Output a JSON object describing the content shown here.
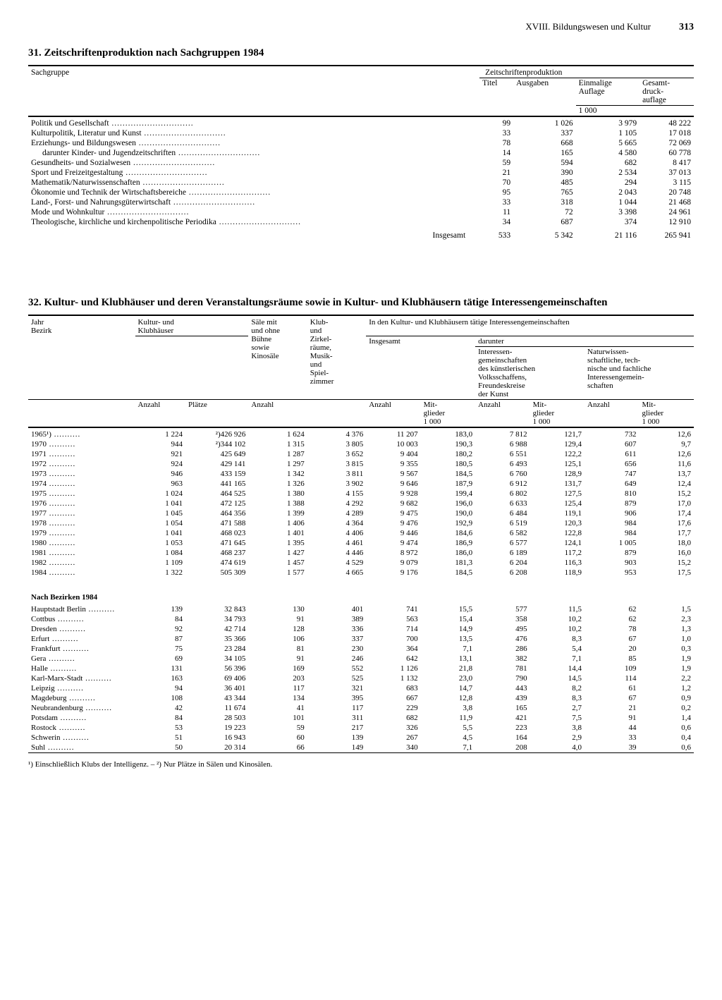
{
  "page": {
    "chapter": "XVIII. Bildungswesen und Kultur",
    "number": "313"
  },
  "table31": {
    "title": "31. Zeitschriftenproduktion nach Sachgruppen 1984",
    "col_sachgruppe": "Sachgruppe",
    "col_group": "Zeitschriftenproduktion",
    "col_titel": "Titel",
    "col_ausgaben": "Ausgaben",
    "col_einmalige": "Einmalige\nAuflage",
    "col_gesamt": "Gesamt-\ndruck-\nauflage",
    "unit_1000": "1 000",
    "rows": [
      {
        "label": "Politik und Gesellschaft",
        "titel": "99",
        "ausgaben": "1 026",
        "einmalige": "3 979",
        "gesamt": "48 222"
      },
      {
        "label": "Kulturpolitik, Literatur und Kunst",
        "titel": "33",
        "ausgaben": "337",
        "einmalige": "1 105",
        "gesamt": "17 018"
      },
      {
        "label": "Erziehungs- und Bildungswesen",
        "titel": "78",
        "ausgaben": "668",
        "einmalige": "5 665",
        "gesamt": "72 069"
      },
      {
        "label": "darunter Kinder- und Jugendzeitschriften",
        "indent": true,
        "titel": "14",
        "ausgaben": "165",
        "einmalige": "4 580",
        "gesamt": "60 778"
      },
      {
        "label": "Gesundheits- und Sozialwesen",
        "titel": "59",
        "ausgaben": "594",
        "einmalige": "682",
        "gesamt": "8 417"
      },
      {
        "label": "Sport und Freizeitgestaltung",
        "titel": "21",
        "ausgaben": "390",
        "einmalige": "2 534",
        "gesamt": "37 013"
      },
      {
        "label": "Mathematik/Naturwissenschaften",
        "titel": "70",
        "ausgaben": "485",
        "einmalige": "294",
        "gesamt": "3 115"
      },
      {
        "label": "Ökonomie und Technik der Wirtschaftsbereiche",
        "titel": "95",
        "ausgaben": "765",
        "einmalige": "2 043",
        "gesamt": "20 748"
      },
      {
        "label": "Land-, Forst- und Nahrungsgüterwirtschaft",
        "titel": "33",
        "ausgaben": "318",
        "einmalige": "1 044",
        "gesamt": "21 468"
      },
      {
        "label": "Mode und Wohnkultur",
        "titel": "11",
        "ausgaben": "72",
        "einmalige": "3 398",
        "gesamt": "24 961"
      },
      {
        "label": "Theologische, kirchliche und kirchenpolitische Periodika",
        "titel": "34",
        "ausgaben": "687",
        "einmalige": "374",
        "gesamt": "12 910"
      }
    ],
    "total_label": "Insgesamt",
    "total": {
      "titel": "533",
      "ausgaben": "5 342",
      "einmalige": "21 116",
      "gesamt": "265 941"
    }
  },
  "table32": {
    "title": "32. Kultur- und Klubhäuser und deren Veranstaltungsräume sowie in Kultur- und Klubhäusern tätige Interessengemeinschaften",
    "col_jahr": "Jahr\nBezirk",
    "col_kk": "Kultur- und\nKlubhäuser",
    "col_saele": "Säle mit\nund ohne\nBühne\nsowie\nKinosäle",
    "col_klub": "Klub-\nund\nZirkel-\nräume,\nMusik-\nund\nSpiel-\nzimmer",
    "col_ig_group": "In den Kultur- und Klubhäusern tätige Interessengemeinschaften",
    "col_insgesamt": "Insgesamt",
    "col_darunter": "darunter",
    "col_kunst": "Interessen-\ngemeinschaften\ndes künstlerischen\nVolksschaffens,\nFreundeskreise\nder Kunst",
    "col_natur": "Naturwissen-\nschaftliche, tech-\nnische und fachliche\nInteressengemein-\nschaften",
    "sub_anzahl": "Anzahl",
    "sub_plaetze": "Plätze",
    "sub_mitglieder": "Mit-\nglieder\n1 000",
    "years": [
      {
        "y": "1965¹)",
        "a": "1 224",
        "p": "²)426 926",
        "s": "1 624",
        "k": "4 376",
        "ia": "11 207",
        "im": "183,0",
        "ka": "7 812",
        "km": "121,7",
        "na": "732",
        "nm": "12,6"
      },
      {
        "y": "1970",
        "a": "944",
        "p": "²)344 102",
        "s": "1 315",
        "k": "3 805",
        "ia": "10 003",
        "im": "190,3",
        "ka": "6 988",
        "km": "129,4",
        "na": "607",
        "nm": "9,7"
      },
      {
        "y": "1971",
        "a": "921",
        "p": "425 649",
        "s": "1 287",
        "k": "3 652",
        "ia": "9 404",
        "im": "180,2",
        "ka": "6 551",
        "km": "122,2",
        "na": "611",
        "nm": "12,6"
      },
      {
        "y": "1972",
        "a": "924",
        "p": "429 141",
        "s": "1 297",
        "k": "3 815",
        "ia": "9 355",
        "im": "180,5",
        "ka": "6 493",
        "km": "125,1",
        "na": "656",
        "nm": "11,6"
      },
      {
        "y": "1973",
        "a": "946",
        "p": "433 159",
        "s": "1 342",
        "k": "3 811",
        "ia": "9 567",
        "im": "184,5",
        "ka": "6 760",
        "km": "128,9",
        "na": "747",
        "nm": "13,7"
      },
      {
        "y": "1974",
        "a": "963",
        "p": "441 165",
        "s": "1 326",
        "k": "3 902",
        "ia": "9 646",
        "im": "187,9",
        "ka": "6 912",
        "km": "131,7",
        "na": "649",
        "nm": "12,4"
      },
      {
        "y": "1975",
        "a": "1 024",
        "p": "464 525",
        "s": "1 380",
        "k": "4 155",
        "ia": "9 928",
        "im": "199,4",
        "ka": "6 802",
        "km": "127,5",
        "na": "810",
        "nm": "15,2"
      },
      {
        "y": "1976",
        "a": "1 041",
        "p": "472 125",
        "s": "1 388",
        "k": "4 292",
        "ia": "9 682",
        "im": "196,0",
        "ka": "6 633",
        "km": "125,4",
        "na": "879",
        "nm": "17,0"
      },
      {
        "y": "1977",
        "a": "1 045",
        "p": "464 356",
        "s": "1 399",
        "k": "4 289",
        "ia": "9 475",
        "im": "190,0",
        "ka": "6 484",
        "km": "119,1",
        "na": "906",
        "nm": "17,4"
      },
      {
        "y": "1978",
        "a": "1 054",
        "p": "471 588",
        "s": "1 406",
        "k": "4 364",
        "ia": "9 476",
        "im": "192,9",
        "ka": "6 519",
        "km": "120,3",
        "na": "984",
        "nm": "17,6"
      },
      {
        "y": "1979",
        "a": "1 041",
        "p": "468 023",
        "s": "1 401",
        "k": "4 406",
        "ia": "9 446",
        "im": "184,6",
        "ka": "6 582",
        "km": "122,8",
        "na": "984",
        "nm": "17,7"
      },
      {
        "y": "1980",
        "a": "1 053",
        "p": "471 645",
        "s": "1 395",
        "k": "4 461",
        "ia": "9 474",
        "im": "186,9",
        "ka": "6 577",
        "km": "124,1",
        "na": "1 005",
        "nm": "18,0"
      },
      {
        "y": "1981",
        "a": "1 084",
        "p": "468 237",
        "s": "1 427",
        "k": "4 446",
        "ia": "8 972",
        "im": "186,0",
        "ka": "6 189",
        "km": "117,2",
        "na": "879",
        "nm": "16,0"
      },
      {
        "y": "1982",
        "a": "1 109",
        "p": "474 619",
        "s": "1 457",
        "k": "4 529",
        "ia": "9 079",
        "im": "181,3",
        "ka": "6 204",
        "km": "116,3",
        "na": "903",
        "nm": "15,2"
      },
      {
        "y": "1984",
        "a": "1 322",
        "p": "505 309",
        "s": "1 577",
        "k": "4 665",
        "ia": "9 176",
        "im": "184,5",
        "ka": "6 208",
        "km": "118,9",
        "na": "953",
        "nm": "17,5"
      }
    ],
    "bezirke_title": "Nach Bezirken 1984",
    "bezirke": [
      {
        "y": "Hauptstadt Berlin",
        "a": "139",
        "p": "32 843",
        "s": "130",
        "k": "401",
        "ia": "741",
        "im": "15,5",
        "ka": "577",
        "km": "11,5",
        "na": "62",
        "nm": "1,5"
      },
      {
        "y": "Cottbus",
        "a": "84",
        "p": "34 793",
        "s": "91",
        "k": "389",
        "ia": "563",
        "im": "15,4",
        "ka": "358",
        "km": "10,2",
        "na": "62",
        "nm": "2,3"
      },
      {
        "y": "Dresden",
        "a": "92",
        "p": "42 714",
        "s": "128",
        "k": "336",
        "ia": "714",
        "im": "14,9",
        "ka": "495",
        "km": "10,2",
        "na": "78",
        "nm": "1,3"
      },
      {
        "y": "Erfurt",
        "a": "87",
        "p": "35 366",
        "s": "106",
        "k": "337",
        "ia": "700",
        "im": "13,5",
        "ka": "476",
        "km": "8,3",
        "na": "67",
        "nm": "1,0"
      },
      {
        "y": "Frankfurt",
        "a": "75",
        "p": "23 284",
        "s": "81",
        "k": "230",
        "ia": "364",
        "im": "7,1",
        "ka": "286",
        "km": "5,4",
        "na": "20",
        "nm": "0,3"
      },
      {
        "y": "Gera",
        "a": "69",
        "p": "34 105",
        "s": "91",
        "k": "246",
        "ia": "642",
        "im": "13,1",
        "ka": "382",
        "km": "7,1",
        "na": "85",
        "nm": "1,9"
      },
      {
        "y": "Halle",
        "a": "131",
        "p": "56 396",
        "s": "169",
        "k": "552",
        "ia": "1 126",
        "im": "21,8",
        "ka": "781",
        "km": "14,4",
        "na": "109",
        "nm": "1,9"
      },
      {
        "y": "Karl-Marx-Stadt",
        "a": "163",
        "p": "69 406",
        "s": "203",
        "k": "525",
        "ia": "1 132",
        "im": "23,0",
        "ka": "790",
        "km": "14,5",
        "na": "114",
        "nm": "2,2"
      },
      {
        "y": "Leipzig",
        "a": "94",
        "p": "36 401",
        "s": "117",
        "k": "321",
        "ia": "683",
        "im": "14,7",
        "ka": "443",
        "km": "8,2",
        "na": "61",
        "nm": "1,2"
      },
      {
        "y": "Magdeburg",
        "a": "108",
        "p": "43 344",
        "s": "134",
        "k": "395",
        "ia": "667",
        "im": "12,8",
        "ka": "439",
        "km": "8,3",
        "na": "67",
        "nm": "0,9"
      },
      {
        "y": "Neubrandenburg",
        "a": "42",
        "p": "11 674",
        "s": "41",
        "k": "117",
        "ia": "229",
        "im": "3,8",
        "ka": "165",
        "km": "2,7",
        "na": "21",
        "nm": "0,2"
      },
      {
        "y": "Potsdam",
        "a": "84",
        "p": "28 503",
        "s": "101",
        "k": "311",
        "ia": "682",
        "im": "11,9",
        "ka": "421",
        "km": "7,5",
        "na": "91",
        "nm": "1,4"
      },
      {
        "y": "Rostock",
        "a": "53",
        "p": "19 223",
        "s": "59",
        "k": "217",
        "ia": "326",
        "im": "5,5",
        "ka": "223",
        "km": "3,8",
        "na": "44",
        "nm": "0,6"
      },
      {
        "y": "Schwerin",
        "a": "51",
        "p": "16 943",
        "s": "60",
        "k": "139",
        "ia": "267",
        "im": "4,5",
        "ka": "164",
        "km": "2,9",
        "na": "33",
        "nm": "0,4"
      },
      {
        "y": "Suhl",
        "a": "50",
        "p": "20 314",
        "s": "66",
        "k": "149",
        "ia": "340",
        "im": "7,1",
        "ka": "208",
        "km": "4,0",
        "na": "39",
        "nm": "0,6"
      }
    ],
    "footnote": "¹) Einschließlich Klubs der Intelligenz. – ²) Nur Plätze in Sälen und Kinosälen."
  }
}
